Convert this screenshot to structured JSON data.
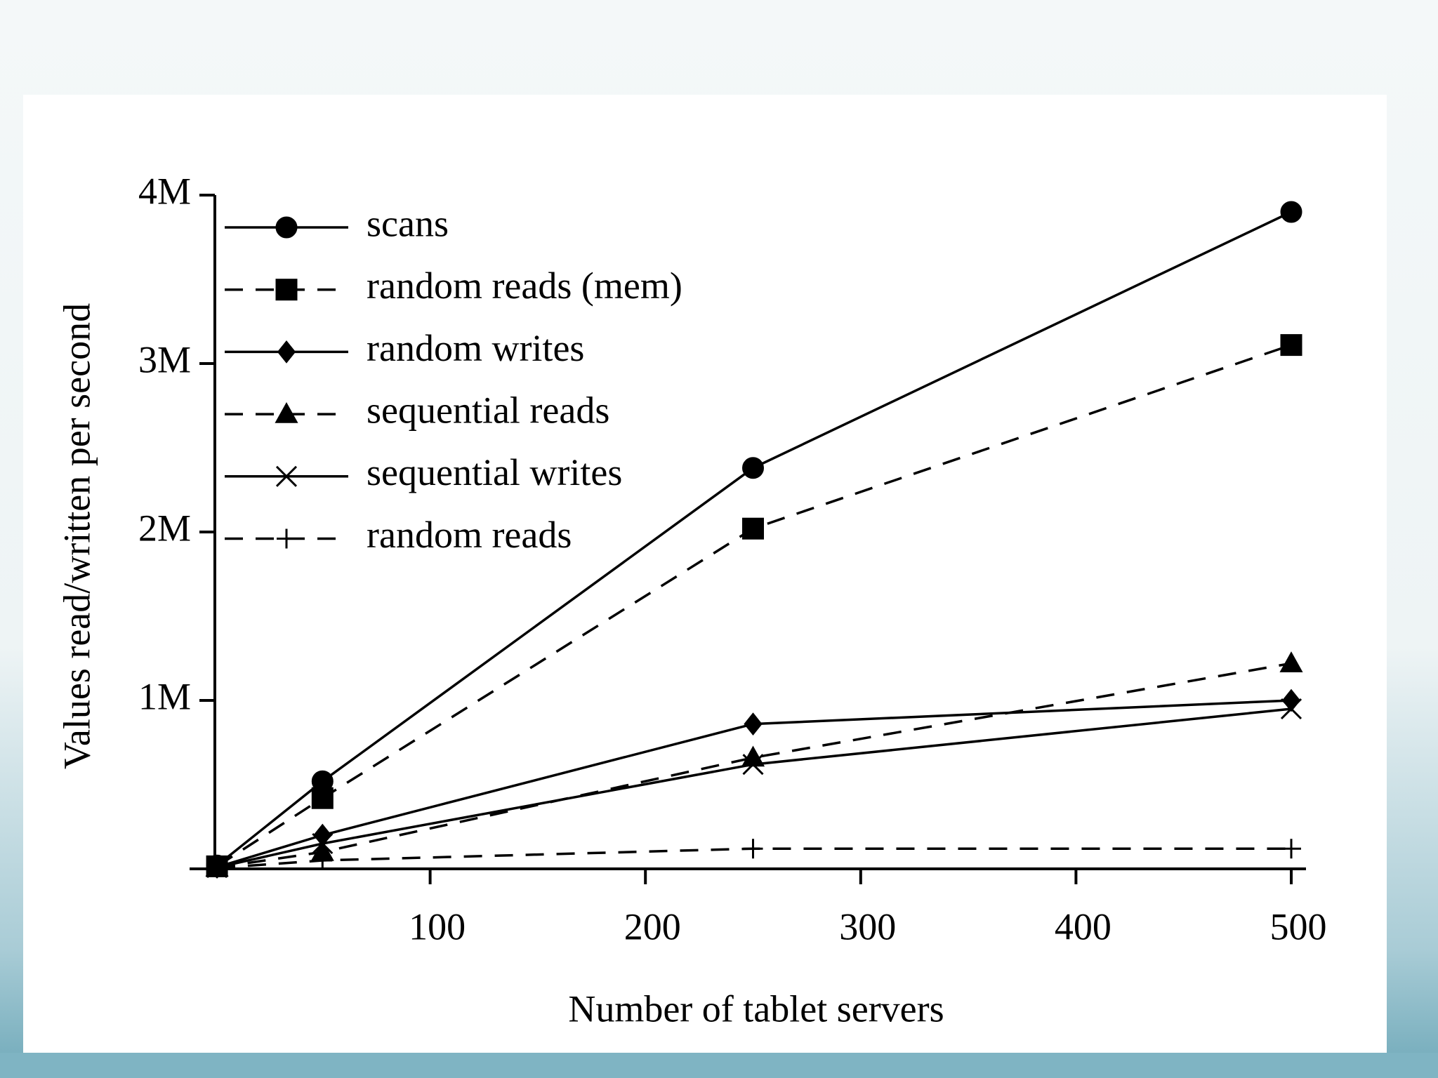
{
  "chart_data": {
    "type": "line",
    "x_label": "Number of tablet servers",
    "y_label": "Values read/written per second",
    "x": [
      1,
      50,
      250,
      500
    ],
    "series": [
      {
        "name": "scans",
        "color": "#000000",
        "dash": false,
        "marker": "circle",
        "values": [
          20000,
          520000,
          2380000,
          3900000
        ]
      },
      {
        "name": "random reads (mem)",
        "color": "#000000",
        "dash": true,
        "marker": "square",
        "values": [
          15000,
          420000,
          2020000,
          3110000
        ]
      },
      {
        "name": "random writes",
        "color": "#000000",
        "dash": false,
        "marker": "diamond",
        "values": [
          10000,
          200000,
          860000,
          1000000
        ]
      },
      {
        "name": "sequential reads",
        "color": "#000000",
        "dash": true,
        "marker": "triangle",
        "values": [
          8000,
          100000,
          660000,
          1220000
        ]
      },
      {
        "name": "sequential writes",
        "color": "#000000",
        "dash": false,
        "marker": "x",
        "values": [
          8000,
          150000,
          620000,
          950000
        ]
      },
      {
        "name": "random reads",
        "color": "#000000",
        "dash": true,
        "marker": "plus",
        "values": [
          5000,
          50000,
          120000,
          120000
        ]
      }
    ],
    "xlim": [
      0,
      500
    ],
    "xticks": [
      100,
      200,
      300,
      400,
      500
    ],
    "ylim": [
      0,
      4000000
    ],
    "yticks": [
      {
        "value": 1000000,
        "label": "1M"
      },
      {
        "value": 2000000,
        "label": "2M"
      },
      {
        "value": 3000000,
        "label": "3M"
      },
      {
        "value": 4000000,
        "label": "4M"
      }
    ],
    "legend": "top-left"
  }
}
